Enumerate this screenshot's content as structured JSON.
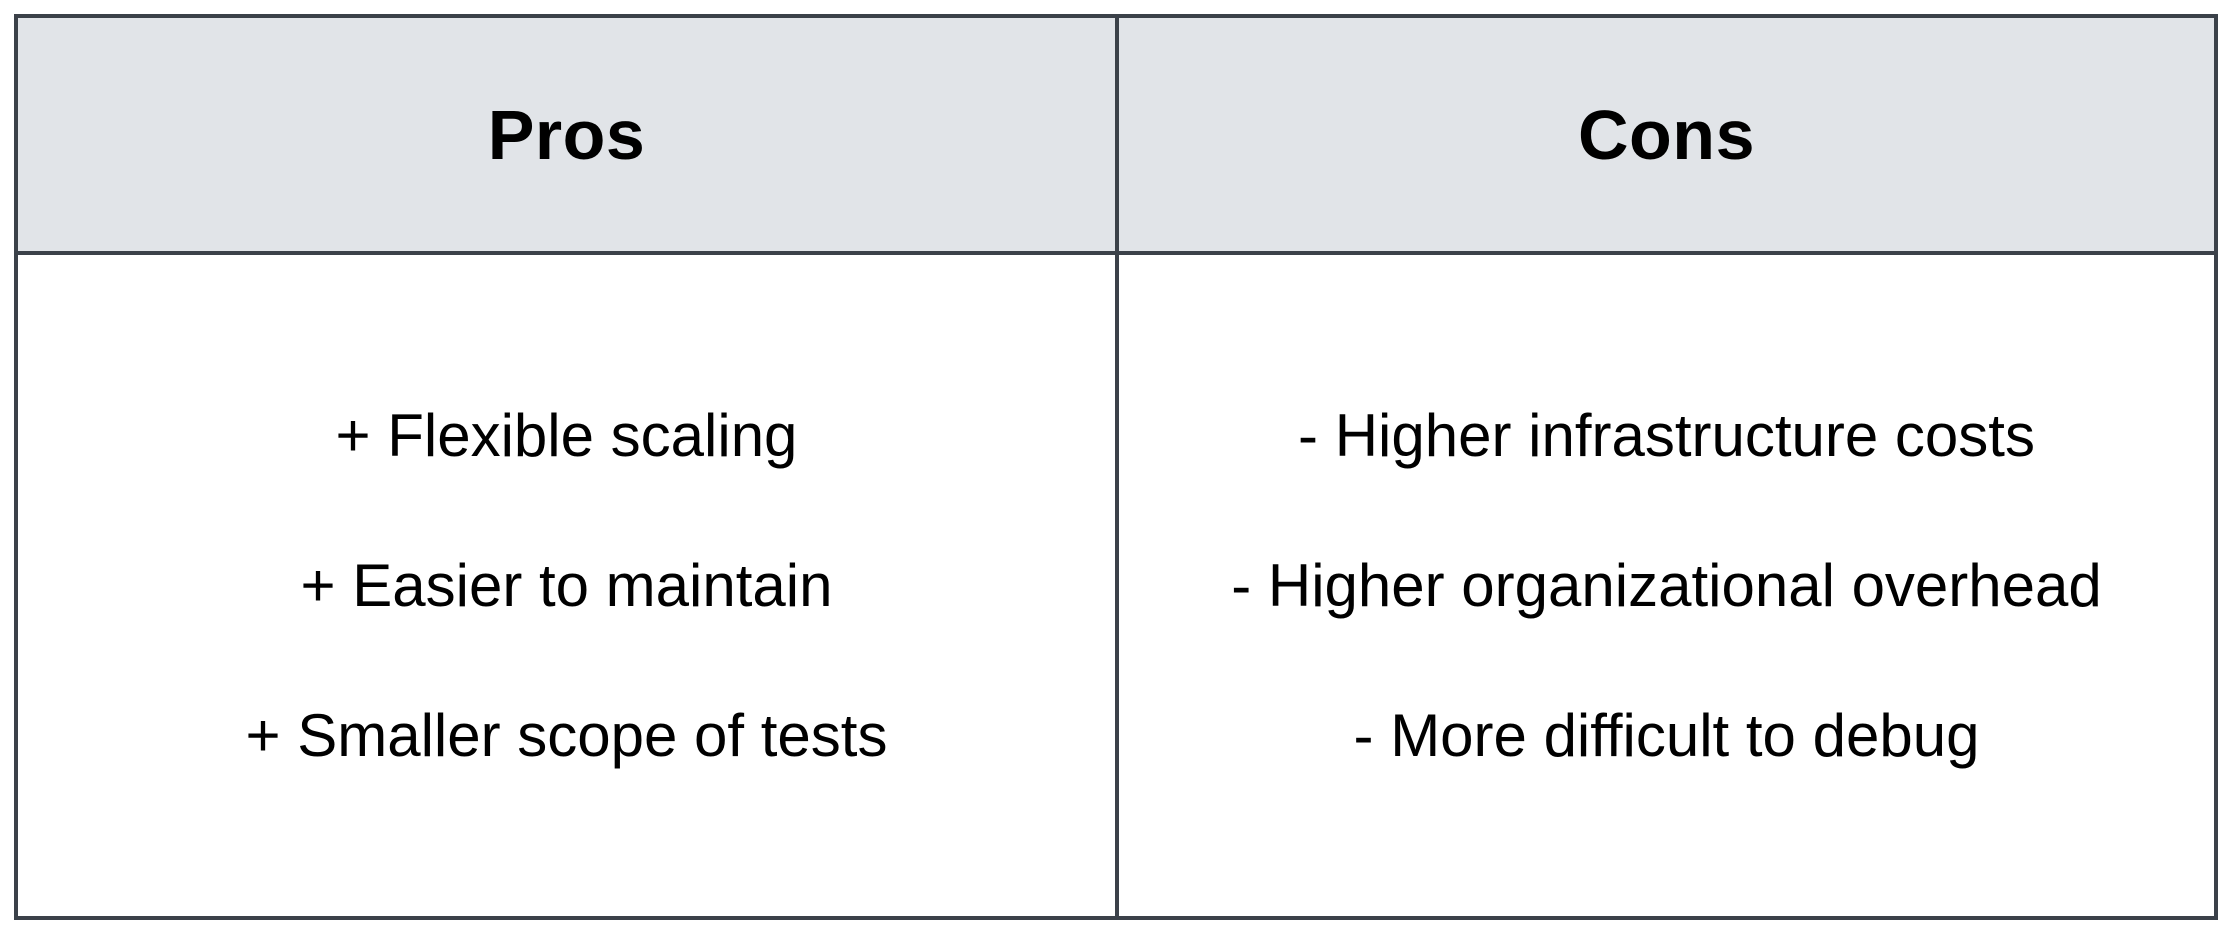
{
  "table": {
    "pros": {
      "header": "Pros",
      "items": [
        "+ Flexible scaling",
        "+ Easier to maintain",
        "+ Smaller scope of tests"
      ]
    },
    "cons": {
      "header": "Cons",
      "items": [
        "- Higher infrastructure costs",
        "- Higher organizational overhead",
        "- More difficult to debug"
      ]
    }
  },
  "colors": {
    "header_background": "#e1e4e8",
    "border": "#3b4149",
    "text": "#000000"
  }
}
